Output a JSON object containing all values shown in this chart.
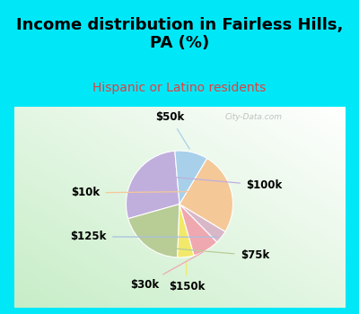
{
  "title": "Income distribution in Fairless Hills,\nPA (%)",
  "subtitle": "Hispanic or Latino residents",
  "labels": [
    "$100k",
    "$75k",
    "$150k",
    "$30k",
    "$125k",
    "$10k",
    "$50k"
  ],
  "sizes": [
    28,
    20,
    5,
    8,
    4,
    25,
    10
  ],
  "colors": [
    "#c0aedd",
    "#b8cc96",
    "#f2e96a",
    "#f0a8b0",
    "#d8b8c8",
    "#f5c898",
    "#a8d0ea"
  ],
  "title_fontsize": 13,
  "subtitle_fontsize": 10,
  "subtitle_color": "#e04040",
  "title_color": "#000000",
  "bg_color_outer": "#00e8f8",
  "watermark": "City-Data.com",
  "label_fontsize": 8.5,
  "startangle": 95,
  "label_color": "#000000"
}
